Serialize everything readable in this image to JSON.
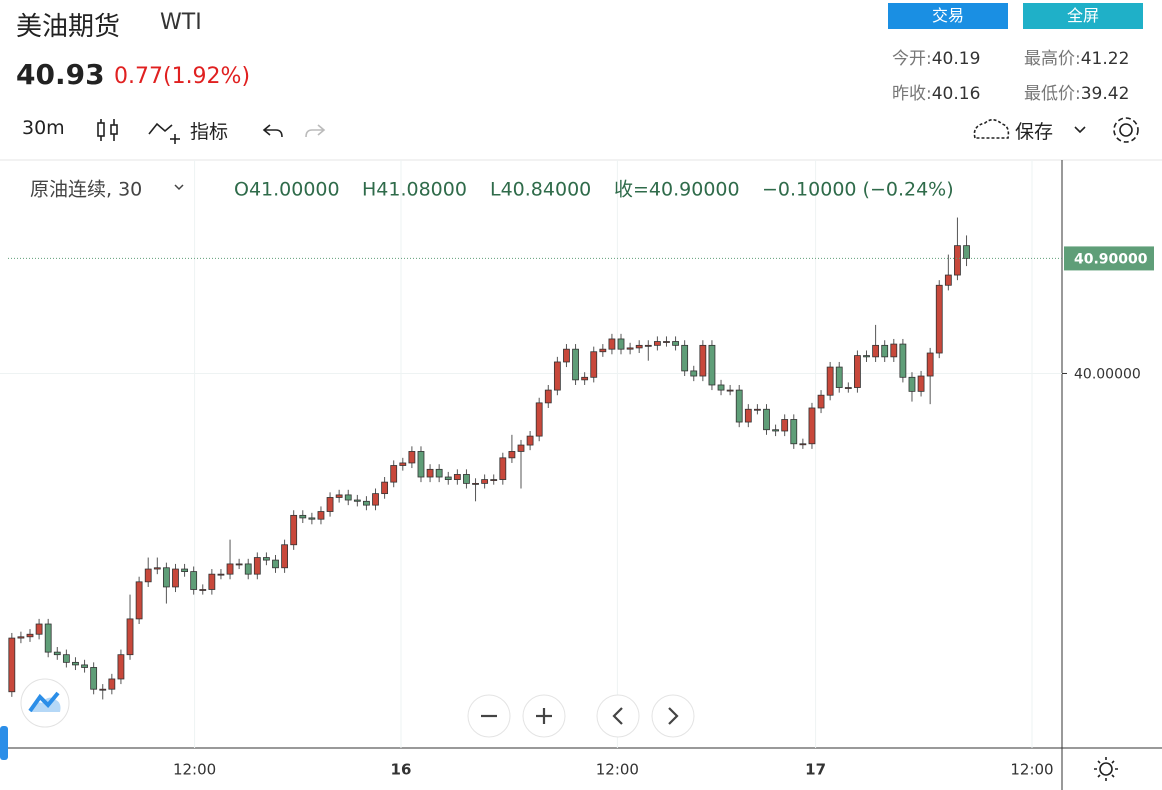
{
  "header": {
    "title": "美油期货",
    "symbol": "WTI",
    "price": "40.93",
    "change": "0.77(1.92%)",
    "buttons": [
      "交易",
      "全屏"
    ],
    "stats": [
      {
        "label": "今开:",
        "value": "40.19"
      },
      {
        "label": "最高价:",
        "value": "41.22"
      },
      {
        "label": "昨收:",
        "value": "40.16"
      },
      {
        "label": "最低价:",
        "value": "39.42"
      }
    ]
  },
  "toolbar": {
    "interval": "30m",
    "indicators": "指标",
    "save": "保存"
  },
  "chart_data": {
    "type": "candlestick",
    "legend": {
      "name": "原油连续, 30",
      "open": "O41.00000",
      "high": "H41.08000",
      "low": "L40.84000",
      "close": "收=40.90000",
      "change": "−0.10000 (−0.24%)"
    },
    "up_color": "#c8483b",
    "down_color": "#5f9e78",
    "xlim": [
      -1.3,
      115.5
    ],
    "xticks": [
      {
        "value": 20.1,
        "label": "12:00"
      },
      {
        "value": 42.8,
        "label": "16"
      },
      {
        "value": 66.6,
        "label": "12:00"
      },
      {
        "value": 88.4,
        "label": "17"
      },
      {
        "value": 112.2,
        "label": "12:00"
      }
    ],
    "ylim": [
      37.07,
      41.67
    ],
    "yticks": [
      {
        "value": 40,
        "label": "40.00000"
      }
    ],
    "last_price": {
      "value": 40.9,
      "label": "40.90000"
    },
    "grid": true,
    "ohlc": [
      [
        37.51,
        37.97,
        37.47,
        37.93
      ],
      [
        37.93,
        37.98,
        37.89,
        37.94
      ],
      [
        37.94,
        38.0,
        37.9,
        37.96
      ],
      [
        37.96,
        38.08,
        37.92,
        38.04
      ],
      [
        38.04,
        38.08,
        37.78,
        37.82
      ],
      [
        37.82,
        37.86,
        37.76,
        37.8
      ],
      [
        37.8,
        37.84,
        37.7,
        37.74
      ],
      [
        37.74,
        37.78,
        37.68,
        37.72
      ],
      [
        37.72,
        37.76,
        37.66,
        37.7
      ],
      [
        37.7,
        37.74,
        37.49,
        37.53
      ],
      [
        37.53,
        37.57,
        37.45,
        37.53
      ],
      [
        37.53,
        37.65,
        37.49,
        37.61
      ],
      [
        37.61,
        37.84,
        37.57,
        37.8
      ],
      [
        37.8,
        38.27,
        37.76,
        38.08
      ],
      [
        38.08,
        38.41,
        38.04,
        38.37
      ],
      [
        38.37,
        38.56,
        38.33,
        38.47
      ],
      [
        38.47,
        38.56,
        38.43,
        38.48
      ],
      [
        38.48,
        38.52,
        38.2,
        38.33
      ],
      [
        38.33,
        38.51,
        38.29,
        38.47
      ],
      [
        38.47,
        38.51,
        38.41,
        38.45
      ],
      [
        38.45,
        38.49,
        38.27,
        38.31
      ],
      [
        38.31,
        38.35,
        38.27,
        38.31
      ],
      [
        38.31,
        38.47,
        38.27,
        38.43
      ],
      [
        38.43,
        38.47,
        38.39,
        38.43
      ],
      [
        38.43,
        38.7,
        38.39,
        38.51
      ],
      [
        38.51,
        38.55,
        38.47,
        38.51
      ],
      [
        38.51,
        38.55,
        38.39,
        38.43
      ],
      [
        38.43,
        38.6,
        38.39,
        38.56
      ],
      [
        38.56,
        38.6,
        38.5,
        38.54
      ],
      [
        38.54,
        38.58,
        38.44,
        38.48
      ],
      [
        38.48,
        38.7,
        38.44,
        38.66
      ],
      [
        38.66,
        38.93,
        38.62,
        38.89
      ],
      [
        38.89,
        38.93,
        38.83,
        38.87
      ],
      [
        38.87,
        38.91,
        38.82,
        38.86
      ],
      [
        38.86,
        38.96,
        38.82,
        38.92
      ],
      [
        38.92,
        39.07,
        38.88,
        39.03
      ],
      [
        39.03,
        39.09,
        38.99,
        39.05
      ],
      [
        39.05,
        39.09,
        38.97,
        39.01
      ],
      [
        39.01,
        39.05,
        38.96,
        39.0
      ],
      [
        39.0,
        39.04,
        38.93,
        38.97
      ],
      [
        38.97,
        39.1,
        38.93,
        39.06
      ],
      [
        39.06,
        39.19,
        39.02,
        39.15
      ],
      [
        39.15,
        39.32,
        39.11,
        39.28
      ],
      [
        39.28,
        39.34,
        39.24,
        39.3
      ],
      [
        39.3,
        39.43,
        39.26,
        39.39
      ],
      [
        39.39,
        39.43,
        39.15,
        39.19
      ],
      [
        39.19,
        39.29,
        39.15,
        39.25
      ],
      [
        39.25,
        39.29,
        39.15,
        39.19
      ],
      [
        39.19,
        39.23,
        39.13,
        39.17
      ],
      [
        39.17,
        39.25,
        39.13,
        39.21
      ],
      [
        39.21,
        39.25,
        39.1,
        39.14
      ],
      [
        39.14,
        39.18,
        39.0,
        39.14
      ],
      [
        39.14,
        39.21,
        39.1,
        39.17
      ],
      [
        39.17,
        39.21,
        39.13,
        39.17
      ],
      [
        39.17,
        39.38,
        39.13,
        39.34
      ],
      [
        39.34,
        39.52,
        39.3,
        39.39
      ],
      [
        39.39,
        39.48,
        39.1,
        39.44
      ],
      [
        39.44,
        39.55,
        39.4,
        39.51
      ],
      [
        39.51,
        39.81,
        39.47,
        39.77
      ],
      [
        39.77,
        39.91,
        39.73,
        39.87
      ],
      [
        39.87,
        40.13,
        39.83,
        40.09
      ],
      [
        40.09,
        40.23,
        40.05,
        40.19
      ],
      [
        40.19,
        40.23,
        39.91,
        39.95
      ],
      [
        39.95,
        40.01,
        39.91,
        39.97
      ],
      [
        39.97,
        40.21,
        39.93,
        40.17
      ],
      [
        40.17,
        40.23,
        40.13,
        40.19
      ],
      [
        40.19,
        40.31,
        40.15,
        40.27
      ],
      [
        40.27,
        40.31,
        40.15,
        40.19
      ],
      [
        40.19,
        40.24,
        40.15,
        40.2
      ],
      [
        40.2,
        40.26,
        40.16,
        40.22
      ],
      [
        40.22,
        40.26,
        40.1,
        40.22
      ],
      [
        40.22,
        40.29,
        40.18,
        40.25
      ],
      [
        40.25,
        40.29,
        40.21,
        40.25
      ],
      [
        40.25,
        40.29,
        40.18,
        40.22
      ],
      [
        40.22,
        40.26,
        39.98,
        40.02
      ],
      [
        40.02,
        40.06,
        39.94,
        39.98
      ],
      [
        39.98,
        40.26,
        39.94,
        40.22
      ],
      [
        40.22,
        40.26,
        39.87,
        39.91
      ],
      [
        39.91,
        39.95,
        39.83,
        39.87
      ],
      [
        39.87,
        39.91,
        39.83,
        39.87
      ],
      [
        39.87,
        39.91,
        39.58,
        39.62
      ],
      [
        39.62,
        39.76,
        39.58,
        39.72
      ],
      [
        39.72,
        39.76,
        39.68,
        39.72
      ],
      [
        39.72,
        39.76,
        39.52,
        39.56
      ],
      [
        39.56,
        39.6,
        39.51,
        39.55
      ],
      [
        39.55,
        39.68,
        39.51,
        39.64
      ],
      [
        39.64,
        39.68,
        39.41,
        39.45
      ],
      [
        39.45,
        39.49,
        39.41,
        39.45
      ],
      [
        39.45,
        39.77,
        39.41,
        39.73
      ],
      [
        39.73,
        39.87,
        39.69,
        39.83
      ],
      [
        39.83,
        40.09,
        39.79,
        40.05
      ],
      [
        40.05,
        40.09,
        39.85,
        39.89
      ],
      [
        39.89,
        39.93,
        39.85,
        39.89
      ],
      [
        39.89,
        40.18,
        39.85,
        40.14
      ],
      [
        40.14,
        40.18,
        40.09,
        40.13
      ],
      [
        40.13,
        40.38,
        40.09,
        40.22
      ],
      [
        40.22,
        40.26,
        40.09,
        40.13
      ],
      [
        40.13,
        40.27,
        40.09,
        40.23
      ],
      [
        40.23,
        40.27,
        39.93,
        39.97
      ],
      [
        39.97,
        40.01,
        39.78,
        39.86
      ],
      [
        39.86,
        40.02,
        39.82,
        39.98
      ],
      [
        39.98,
        40.2,
        39.76,
        40.16
      ],
      [
        40.16,
        40.73,
        40.12,
        40.69
      ],
      [
        40.69,
        40.93,
        40.65,
        40.77
      ],
      [
        40.77,
        41.22,
        40.73,
        41.0
      ],
      [
        41.0,
        41.08,
        40.84,
        40.9
      ]
    ]
  }
}
